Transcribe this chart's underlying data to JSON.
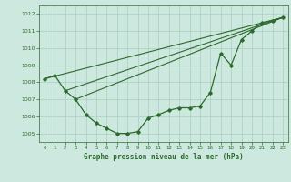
{
  "bg_color": "#cce8df",
  "line_color": "#2d6a2d",
  "grid_color": "#aacfbf",
  "title": "Graphe pression niveau de la mer (hPa)",
  "ylim": [
    1004.5,
    1012.5
  ],
  "xlim": [
    -0.5,
    23.5
  ],
  "yticks": [
    1005,
    1006,
    1007,
    1008,
    1009,
    1010,
    1011,
    1012
  ],
  "xticks": [
    0,
    1,
    2,
    3,
    4,
    5,
    6,
    7,
    8,
    9,
    10,
    11,
    12,
    13,
    14,
    15,
    16,
    17,
    18,
    19,
    20,
    21,
    22,
    23
  ],
  "series1_x": [
    0,
    1,
    2,
    3,
    4,
    5,
    6,
    7,
    8,
    9,
    10,
    11,
    12,
    13,
    14,
    15,
    16,
    17,
    18,
    19,
    20,
    21,
    22,
    23
  ],
  "series1_y": [
    1008.2,
    1008.4,
    1007.5,
    1007.0,
    1006.1,
    1005.6,
    1005.3,
    1005.0,
    1005.0,
    1005.1,
    1005.9,
    1006.1,
    1006.35,
    1006.5,
    1006.5,
    1006.6,
    1007.4,
    1009.7,
    1009.0,
    1010.5,
    1011.0,
    1011.5,
    1011.6,
    1011.8
  ],
  "line2_x": [
    0,
    23
  ],
  "line2_y": [
    1008.2,
    1011.8
  ],
  "line3_x": [
    2,
    23
  ],
  "line3_y": [
    1007.5,
    1011.8
  ],
  "line4_x": [
    3,
    23
  ],
  "line4_y": [
    1007.0,
    1011.8
  ]
}
